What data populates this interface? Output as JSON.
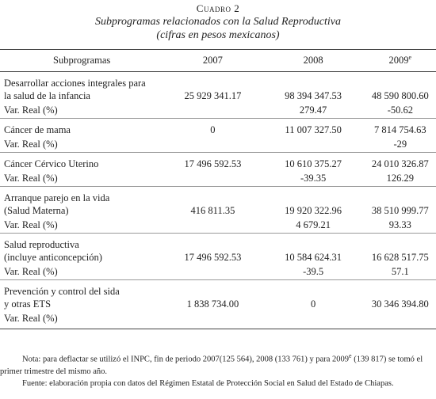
{
  "header": {
    "label": "Cuadro 2",
    "title": "Subprogramas relacionados con la Salud Reproductiva",
    "subtitle": "(cifras en pesos mexicanos)"
  },
  "table": {
    "columns": [
      "Subprogramas",
      "2007",
      "2008",
      "2009"
    ],
    "last_column_sup": "e",
    "groups": [
      {
        "name": [
          "Desarrollar acciones integrales para",
          "la salud de la infancia"
        ],
        "values": [
          "25 929 341.17",
          "98 394 347.53",
          "48 590 800.60"
        ],
        "var_label": "Var. Real (%)",
        "var_values": [
          null,
          "279.47",
          "-50.62"
        ]
      },
      {
        "name": [
          "Cáncer de mama"
        ],
        "values": [
          "0",
          "11 007 327.50",
          "7 814 754.63"
        ],
        "var_label": "Var. Real (%)",
        "var_values": [
          null,
          null,
          "-29"
        ]
      },
      {
        "name": [
          "Cáncer Cérvico Uterino"
        ],
        "values": [
          "17 496 592.53",
          "10 610 375.27",
          "24 010 326.87"
        ],
        "var_label": "Var. Real (%)",
        "var_values": [
          null,
          "-39.35",
          "126.29"
        ]
      },
      {
        "name": [
          "Arranque parejo en la vida",
          "(Salud Materna)"
        ],
        "values": [
          "416 811.35",
          "19 920 322.96",
          "38 510 999.77"
        ],
        "var_label": "Var. Real (%)",
        "var_values": [
          null,
          "4 679.21",
          "93.33"
        ]
      },
      {
        "name": [
          "Salud reproductiva",
          "(incluye anticoncepción)"
        ],
        "values": [
          "17 496 592.53",
          "10 584 624.31",
          "16 628 517.75"
        ],
        "var_label": "Var. Real (%)",
        "var_values": [
          null,
          "-39.5",
          "57.1"
        ]
      },
      {
        "name": [
          "Prevención y control del sida",
          "y otras ETS"
        ],
        "values": [
          "1 838 734.00",
          "0",
          "30 346 394.80"
        ],
        "var_label": "Var. Real (%)",
        "var_values": [
          null,
          null,
          null
        ]
      }
    ]
  },
  "notes": {
    "note_start": "Nota: para deflactar se utilizó el INPC, fin de periodo 2007(125 564), 2008 (133 761) y para 2009",
    "note_sup": "e",
    "note_end": "(139 817) se tomó el primer trimestre del mismo año.",
    "source": "Fuente: elaboración propia con datos del Régimen Estatal de Protección Social en Salud del Estado de Chiapas."
  }
}
